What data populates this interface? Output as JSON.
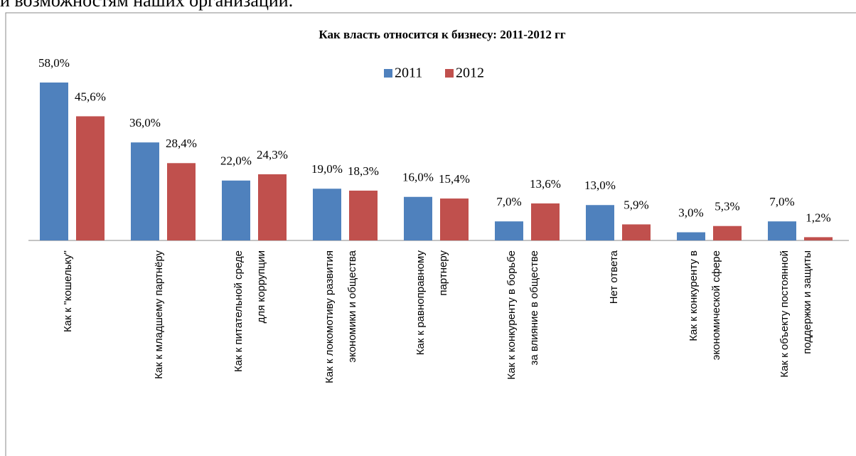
{
  "caption": "и возможностям наших организаций.",
  "chart_data": {
    "type": "bar",
    "title": "Как власть относится к бизнесу: 2011-2012 гг",
    "categories": [
      "Как к \"кошельку\"",
      "Как к младшему партнёру",
      "Как к питательной среде\nдля коррупции",
      "Как к локомотиву развития\nэкономики и общества",
      "Как к равноправному\nпартнеру",
      "Как к конкуренту в борьбе\nза влияние в обществе",
      "Нет ответа",
      "Как к конкуренту в\nэкономической сфере",
      "Как к объекту постоянной\nподдержки и защиты"
    ],
    "series": [
      {
        "name": "2011",
        "color": "#4f81bd",
        "values": [
          58.0,
          36.0,
          22.0,
          19.0,
          16.0,
          7.0,
          13.0,
          3.0,
          7.0
        ],
        "value_labels": [
          "58,0%",
          "36,0%",
          "22,0%",
          "19,0%",
          "16,0%",
          "7,0%",
          "13,0%",
          "3,0%",
          "7,0%"
        ]
      },
      {
        "name": "2012",
        "color": "#c0504d",
        "values": [
          45.6,
          28.4,
          24.3,
          18.3,
          15.4,
          13.6,
          5.9,
          5.3,
          1.2
        ],
        "value_labels": [
          "45,6%",
          "28,4%",
          "24,3%",
          "18,3%",
          "15,4%",
          "13,6%",
          "5,9%",
          "5,3%",
          "1,2%"
        ]
      }
    ],
    "legend": "top"
  }
}
